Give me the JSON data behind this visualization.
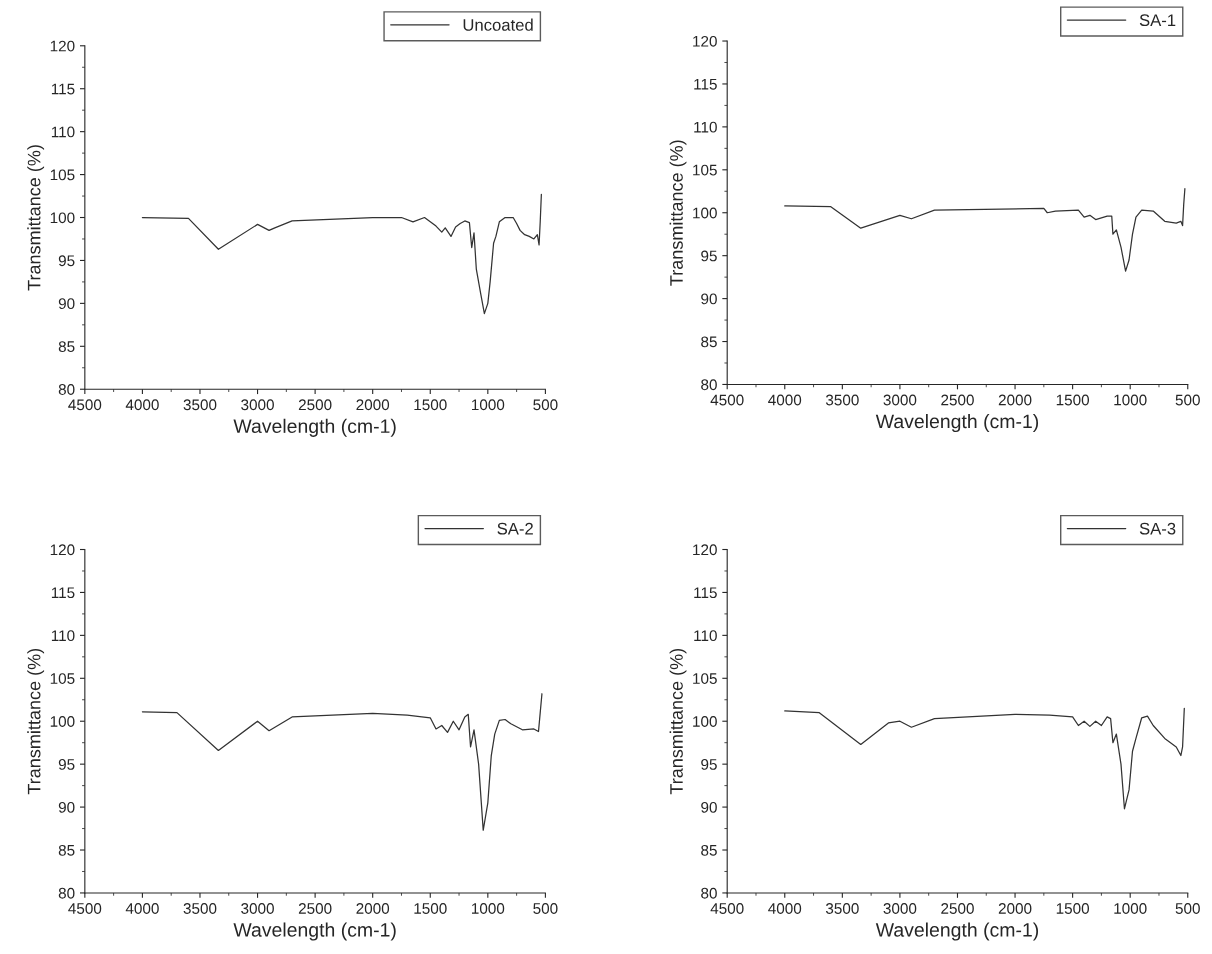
{
  "chart_data": [
    {
      "type": "line",
      "xlabel": "Wavelength (cm-1)",
      "ylabel": "Transmittance (%)",
      "xlim": [
        4500,
        500
      ],
      "ylim": [
        80,
        120
      ],
      "xticks": [
        4500,
        4000,
        3500,
        3000,
        2500,
        2000,
        1500,
        1000,
        500
      ],
      "yticks": [
        80,
        85,
        90,
        95,
        100,
        105,
        110,
        115,
        120
      ],
      "legend": "top right",
      "grid": false,
      "series": [
        {
          "name": "Uncoated",
          "color": "#333333",
          "x": [
            4000,
            3600,
            3340,
            3000,
            2900,
            2850,
            2700,
            2000,
            1750,
            1650,
            1550,
            1450,
            1400,
            1370,
            1320,
            1280,
            1240,
            1200,
            1160,
            1140,
            1120,
            1100,
            1060,
            1030,
            1000,
            980,
            950,
            930,
            900,
            850,
            780,
            750,
            720,
            680,
            640,
            600,
            570,
            555,
            545,
            535
          ],
          "values": [
            100,
            99.9,
            96.3,
            99.2,
            98.5,
            98.8,
            99.6,
            100,
            100,
            99.5,
            100,
            99,
            98.3,
            98.8,
            97.8,
            98.9,
            99.3,
            99.6,
            99.4,
            96.5,
            98.2,
            94,
            91,
            88.8,
            90,
            92.5,
            97,
            97.8,
            99.5,
            100,
            100,
            99.3,
            98.5,
            98,
            97.8,
            97.5,
            98,
            96.8,
            99.5,
            102.7
          ]
        }
      ]
    },
    {
      "type": "line",
      "xlabel": "Wavelength (cm-1)",
      "ylabel": "Transmittance (%)",
      "xlim": [
        4500,
        500
      ],
      "ylim": [
        80,
        120
      ],
      "xticks": [
        4500,
        4000,
        3500,
        3000,
        2500,
        2000,
        1500,
        1000,
        500
      ],
      "yticks": [
        80,
        85,
        90,
        95,
        100,
        105,
        110,
        115,
        120
      ],
      "legend": "top right",
      "grid": false,
      "series": [
        {
          "name": "SA-1",
          "color": "#333333",
          "x": [
            4000,
            3600,
            3340,
            3000,
            2900,
            2700,
            1750,
            1720,
            1650,
            1450,
            1400,
            1350,
            1300,
            1200,
            1160,
            1150,
            1120,
            1080,
            1040,
            1010,
            980,
            950,
            900,
            800,
            700,
            600,
            560,
            545,
            535,
            525
          ],
          "values": [
            100.8,
            100.7,
            98.2,
            99.7,
            99.3,
            100.3,
            100.5,
            100,
            100.2,
            100.3,
            99.5,
            99.7,
            99.2,
            99.6,
            99.6,
            97.5,
            98,
            96,
            93.2,
            94.5,
            97.5,
            99.5,
            100.3,
            100.2,
            99,
            98.8,
            99,
            98.5,
            101,
            102.8
          ]
        }
      ]
    },
    {
      "type": "line",
      "xlabel": "Wavelength (cm-1)",
      "ylabel": "Transmittance (%)",
      "xlim": [
        4500,
        500
      ],
      "ylim": [
        80,
        120
      ],
      "xticks": [
        4500,
        4000,
        3500,
        3000,
        2500,
        2000,
        1500,
        1000,
        500
      ],
      "yticks": [
        80,
        85,
        90,
        95,
        100,
        105,
        110,
        115,
        120
      ],
      "legend": "top right",
      "grid": false,
      "series": [
        {
          "name": "SA-2",
          "color": "#333333",
          "x": [
            4000,
            3700,
            3340,
            3000,
            2900,
            2700,
            2000,
            1700,
            1500,
            1450,
            1400,
            1350,
            1300,
            1250,
            1200,
            1170,
            1150,
            1120,
            1080,
            1040,
            1000,
            970,
            940,
            900,
            850,
            800,
            700,
            600,
            560,
            545,
            530
          ],
          "values": [
            101.1,
            101,
            96.6,
            100,
            98.9,
            100.5,
            100.9,
            100.7,
            100.4,
            99.1,
            99.5,
            98.7,
            100,
            99,
            100.5,
            100.8,
            97,
            99,
            95,
            87.3,
            90.5,
            96,
            98.5,
            100.1,
            100.2,
            99.7,
            99,
            99.1,
            98.8,
            101,
            103.2
          ]
        }
      ]
    },
    {
      "type": "line",
      "xlabel": "Wavelength (cm-1)",
      "ylabel": "Transmittance (%)",
      "xlim": [
        4500,
        500
      ],
      "ylim": [
        80,
        120
      ],
      "xticks": [
        4500,
        4000,
        3500,
        3000,
        2500,
        2000,
        1500,
        1000,
        500
      ],
      "yticks": [
        80,
        85,
        90,
        95,
        100,
        105,
        110,
        115,
        120
      ],
      "legend": "top right",
      "grid": false,
      "series": [
        {
          "name": "SA-3",
          "color": "#333333",
          "x": [
            4000,
            3700,
            3340,
            3100,
            3000,
            2900,
            2700,
            2000,
            1700,
            1500,
            1450,
            1400,
            1350,
            1300,
            1250,
            1200,
            1170,
            1150,
            1120,
            1080,
            1050,
            1010,
            980,
            950,
            900,
            850,
            800,
            700,
            600,
            560,
            545,
            530
          ],
          "values": [
            101.2,
            101,
            97.3,
            99.8,
            100,
            99.3,
            100.3,
            100.8,
            100.7,
            100.5,
            99.5,
            100,
            99.4,
            100,
            99.5,
            100.5,
            100.3,
            97.5,
            98.5,
            95,
            89.8,
            92,
            96.5,
            98,
            100.4,
            100.6,
            99.5,
            98,
            97,
            96,
            97,
            101.5
          ]
        }
      ]
    }
  ]
}
